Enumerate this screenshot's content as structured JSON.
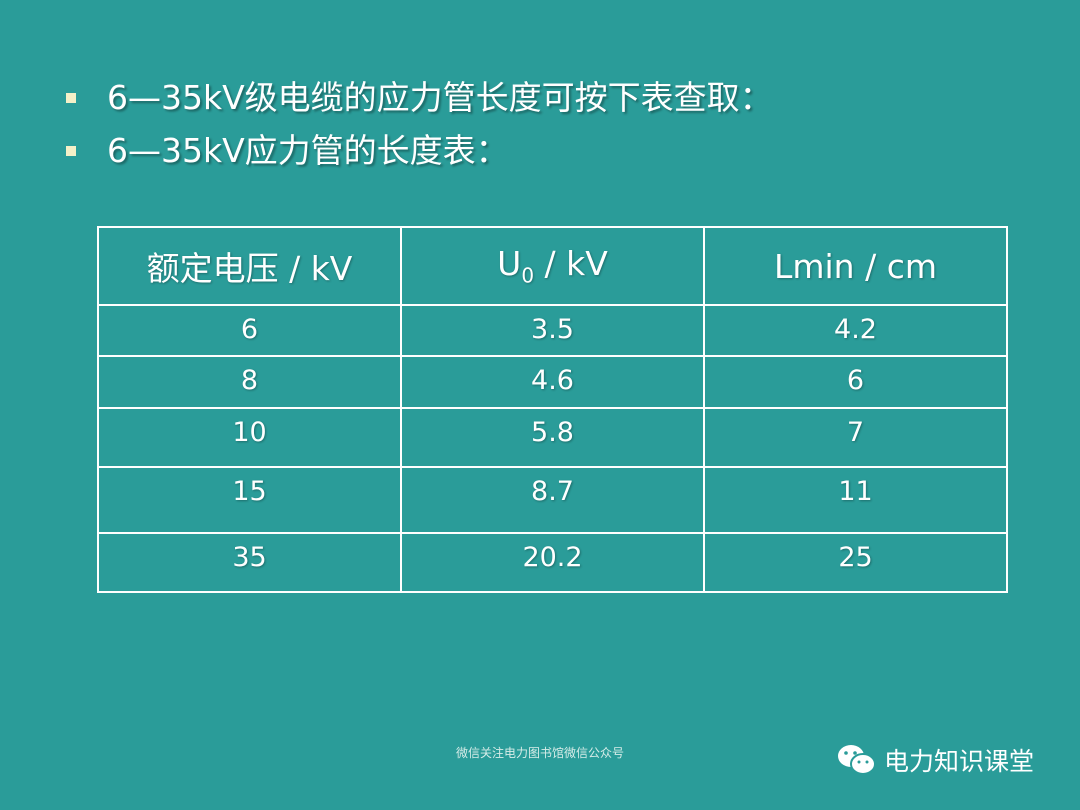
{
  "bullets": [
    "6—35kV级电缆的应力管长度可按下表查取：",
    "6—35kV应力管的长度表："
  ],
  "table": {
    "header": [
      "额定电压 / kV",
      {
        "main": "U",
        "sub": "0",
        "rest": " / kV"
      },
      "Lmin / cm"
    ],
    "rows": [
      [
        "6",
        "3.5",
        "4.2"
      ],
      [
        "8",
        "4.6",
        "6"
      ],
      [
        "10",
        "5.8",
        "7"
      ],
      [
        "15",
        "8.7",
        "11"
      ],
      [
        "35",
        "20.2",
        "25"
      ]
    ]
  },
  "footer": {
    "note": "微信关注电力图书馆微信公众号",
    "watermark": "电力知识课堂"
  }
}
